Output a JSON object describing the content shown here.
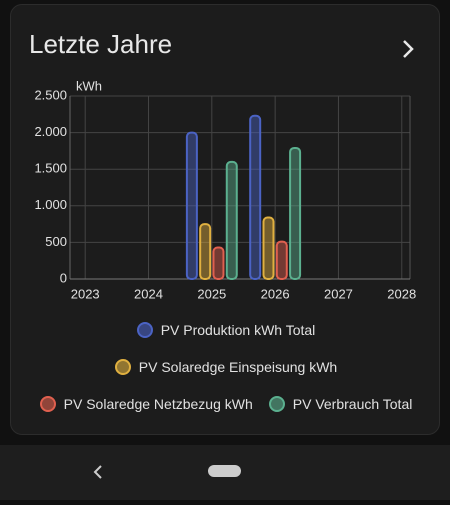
{
  "chart_data": {
    "type": "bar",
    "title": "Letzte Jahre",
    "y_label": "kWh",
    "x": [
      2025,
      2026
    ],
    "series": [
      {
        "name": "PV Produktion kWh Total",
        "color": "#4b63c4",
        "values": [
          2000,
          2230
        ]
      },
      {
        "name": "PV Solaredge Einspeisung kWh",
        "color": "#e0b040",
        "values": [
          750,
          840
        ]
      },
      {
        "name": "PV Solaredge Netzbezug kWh",
        "color": "#e0604f",
        "values": [
          430,
          510
        ]
      },
      {
        "name": "PV Verbrauch Total",
        "color": "#5bb08f",
        "values": [
          1600,
          1790
        ]
      }
    ],
    "xlim": [
      2022.76,
      2028.13
    ],
    "xticks": [
      2023,
      2024,
      2025,
      2026,
      2027,
      2028
    ],
    "ylim": [
      0,
      2500
    ],
    "yticks": [
      0,
      500,
      {
        "value": 1000,
        "label": "1.000"
      },
      {
        "value": 1500,
        "label": "1.500"
      },
      {
        "value": 2000,
        "label": "2.000"
      },
      {
        "value": 2500,
        "label": "2.500"
      }
    ],
    "grid": true
  }
}
